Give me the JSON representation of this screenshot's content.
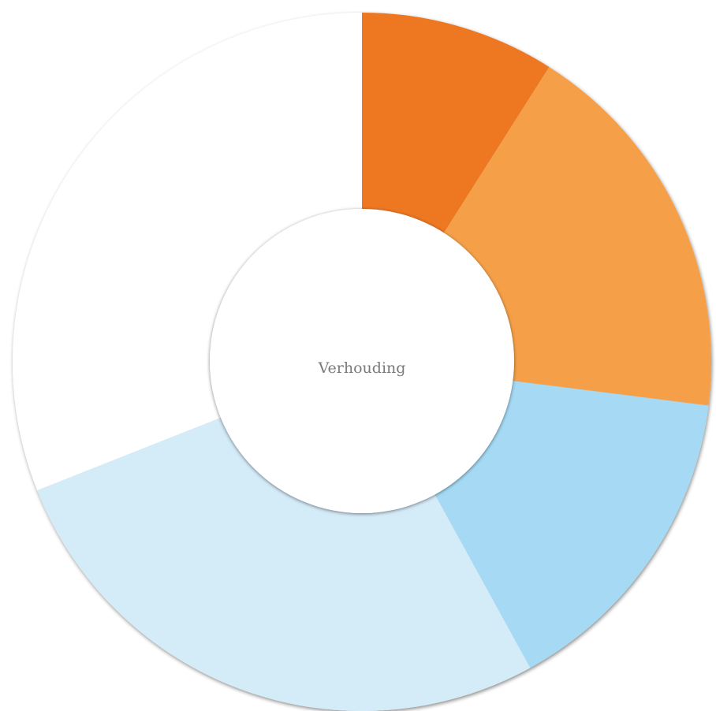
{
  "chart_data": {
    "type": "donut",
    "center_label": "Verhouding",
    "values": [
      9,
      18,
      15,
      27,
      31
    ],
    "colors": [
      "#ee7720",
      "#f5a048",
      "#a6daf4",
      "#d4ebf8",
      "#ffffff"
    ]
  }
}
